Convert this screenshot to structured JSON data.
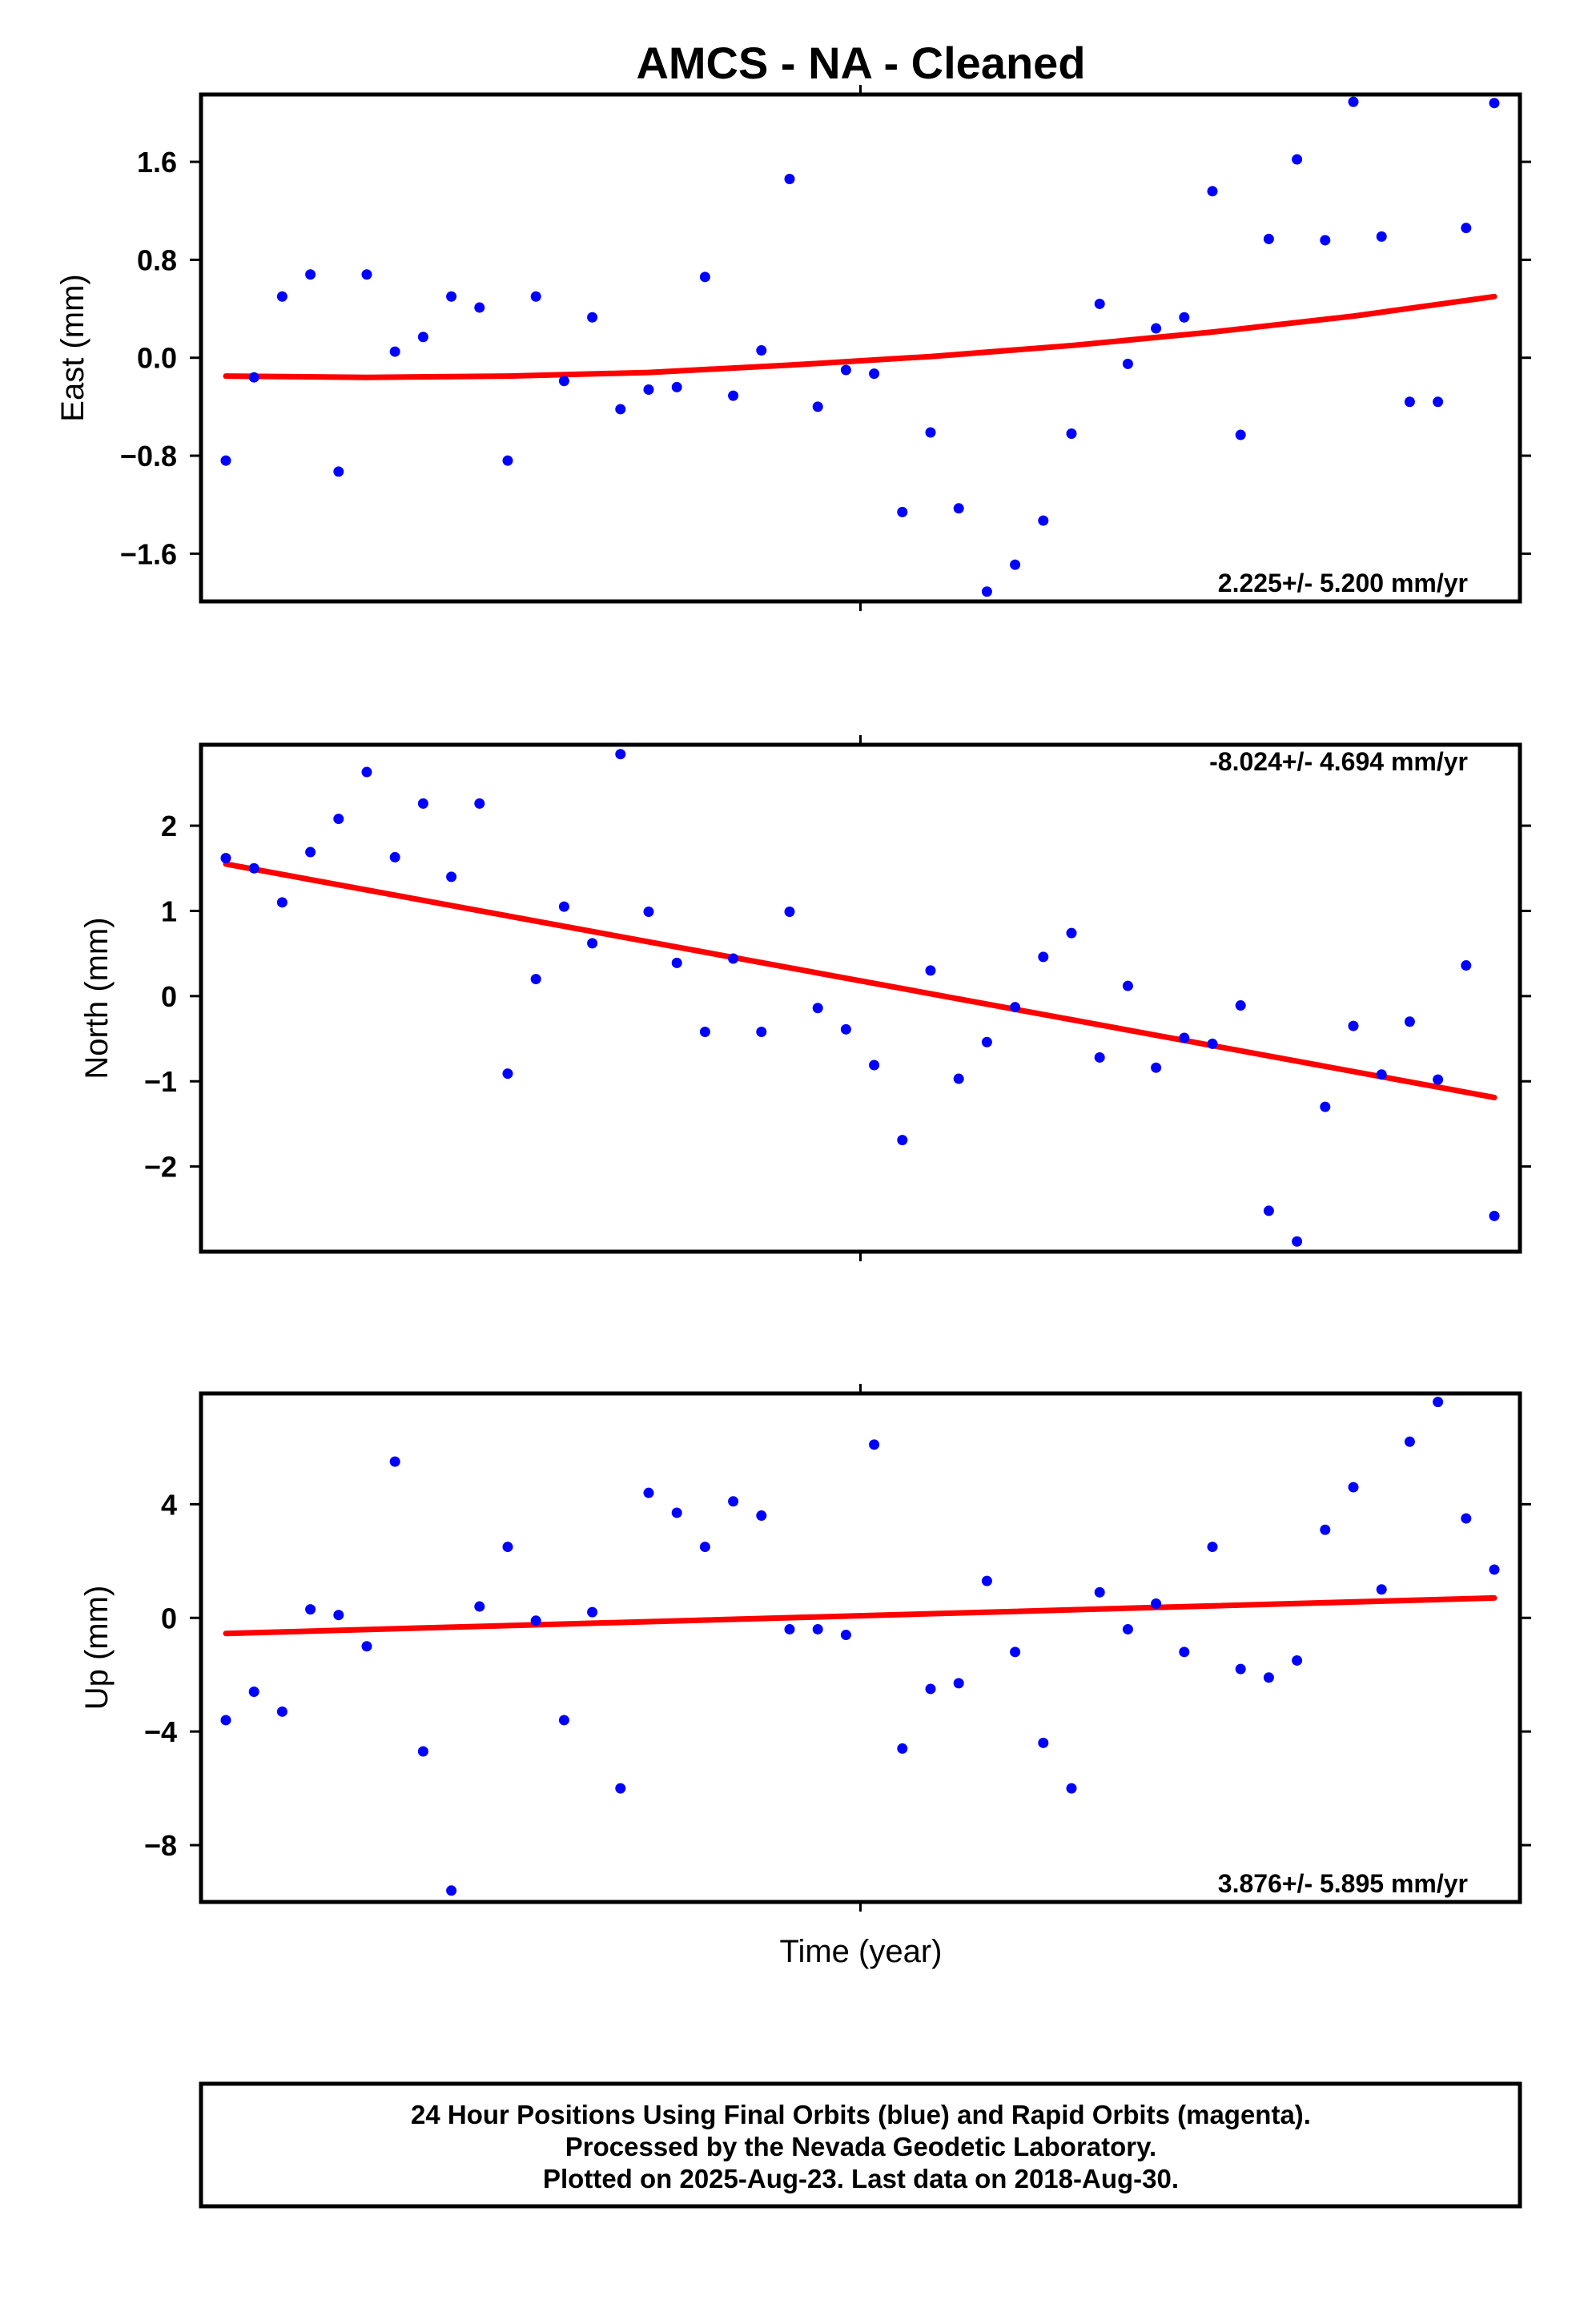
{
  "title": "AMCS  - NA - Cleaned",
  "xlabel": "Time (year)",
  "footer": [
    "24 Hour Positions Using Final Orbits (blue) and Rapid Orbits (magenta).",
    "Processed by the Nevada Geodetic Laboratory.",
    "Plotted on 2025-Aug-23. Last data on 2018-Aug-30."
  ],
  "colors": {
    "points": "#0000ff",
    "fit": "#ff0000",
    "frame": "#000000"
  },
  "chart_data": [
    {
      "type": "scatter",
      "ylabel": "East (mm)",
      "ylim": [
        -1.99,
        2.15
      ],
      "yticks": [
        1.6,
        0.8,
        0.0,
        -0.8,
        -1.6
      ],
      "ytick_labels": [
        "1.6",
        "0.8",
        "0.0",
        "−0.8",
        "−1.6"
      ],
      "rate_label": "2.225+/- 5.200 mm/yr",
      "rate_position": "bottom-right",
      "fit_type": "quadratic",
      "fit": [
        -0.15,
        -0.16,
        -0.15,
        -0.12,
        -0.06,
        0.01,
        0.1,
        0.21,
        0.34,
        0.5
      ],
      "values": [
        -0.84,
        -0.16,
        0.5,
        0.68,
        -0.93,
        0.68,
        0.05,
        0.17,
        0.5,
        0.41,
        -0.84,
        0.5,
        -0.19,
        0.33,
        -0.42,
        -0.26,
        -0.24,
        0.66,
        -0.31,
        0.06,
        1.46,
        -0.4,
        -0.1,
        -0.13,
        -1.26,
        -0.61,
        -1.23,
        -1.91,
        -1.69,
        -1.33,
        -0.62,
        0.44,
        -0.05,
        0.24,
        0.33,
        1.36,
        -0.63,
        0.97,
        1.62,
        0.96,
        2.09,
        0.99,
        -0.36,
        -0.36,
        1.06,
        2.08
      ]
    },
    {
      "type": "scatter",
      "ylabel": "North (mm)",
      "ylim": [
        -3.0,
        2.95
      ],
      "yticks": [
        2,
        1,
        0,
        -1,
        -2
      ],
      "ytick_labels": [
        "2",
        "1",
        "0",
        "−1",
        "−2"
      ],
      "rate_label": "-8.024+/- 4.694 mm/yr",
      "rate_position": "top-right",
      "fit_type": "linear",
      "fit": [
        1.55,
        -1.19
      ],
      "values": [
        1.62,
        1.5,
        1.1,
        1.69,
        2.08,
        2.63,
        1.63,
        2.26,
        1.4,
        2.26,
        -0.91,
        0.2,
        1.05,
        0.62,
        2.84,
        0.99,
        0.39,
        -0.42,
        0.44,
        -0.42,
        0.99,
        -0.14,
        -0.39,
        -0.81,
        -1.69,
        0.3,
        -0.97,
        -0.54,
        -0.13,
        0.46,
        0.74,
        -0.72,
        0.12,
        -0.84,
        -0.49,
        -0.56,
        -0.11,
        -2.52,
        -2.88,
        -1.3,
        -0.35,
        -0.92,
        -0.3,
        -0.98,
        0.36,
        -2.58
      ]
    },
    {
      "type": "scatter",
      "ylabel": "Up (mm)",
      "ylim": [
        -10.0,
        7.9
      ],
      "yticks": [
        4,
        0,
        -4,
        -8
      ],
      "ytick_labels": [
        "4",
        "0",
        "−4",
        "−8"
      ],
      "rate_label": "3.876+/- 5.895 mm/yr",
      "rate_position": "bottom-right",
      "fit_type": "linear",
      "fit": [
        -0.55,
        0.7
      ],
      "values": [
        -3.6,
        -2.6,
        -3.3,
        0.3,
        0.1,
        -1.0,
        5.5,
        -4.7,
        -9.6,
        0.4,
        2.5,
        -0.1,
        -3.6,
        0.2,
        -6.0,
        4.4,
        3.7,
        2.5,
        4.1,
        3.6,
        -0.4,
        -0.4,
        -0.6,
        6.1,
        -4.6,
        -2.5,
        -2.3,
        1.3,
        -1.2,
        -4.4,
        -6.0,
        0.9,
        -0.4,
        0.5,
        -1.2,
        2.5,
        -1.8,
        -2.1,
        -1.5,
        3.1,
        4.6,
        1.0,
        6.2,
        7.6,
        3.5,
        1.7
      ]
    }
  ]
}
